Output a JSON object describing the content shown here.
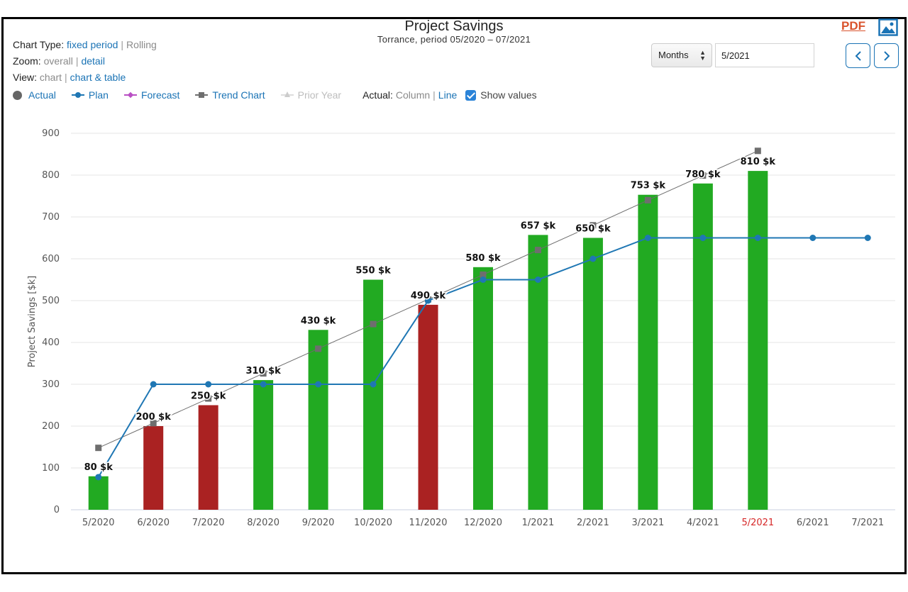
{
  "controls": {
    "chart_type": {
      "label": "Chart Type:",
      "active": "fixed period",
      "inactive": "Rolling"
    },
    "zoom": {
      "label": "Zoom:",
      "inactive": "overall",
      "active": "detail"
    },
    "view": {
      "label": "View:",
      "inactive": "chart",
      "active": "chart & table"
    },
    "separator": "|"
  },
  "legend": {
    "actual": "Actual",
    "plan": "Plan",
    "forecast": "Forecast",
    "trend": "Trend Chart",
    "prior_year": "Prior Year",
    "actual_mode_label": "Actual:",
    "mode_column": "Column",
    "mode_line": "Line",
    "show_values": "Show values"
  },
  "toolbar": {
    "period_select": "Months",
    "date_value": "5/2021",
    "pdf": "PDF"
  },
  "colors": {
    "above_plan": "#22aa22",
    "below_plan": "#aa2222",
    "plan": "#1f77b4",
    "trend": "#6e6e6e",
    "forecast": "#b94fc4",
    "link": "#1a73b5",
    "current_period": "#d62728"
  },
  "chart_data": {
    "type": "bar",
    "title": "Project Savings",
    "subtitle": "Torrance, period 05/2020 – 07/2021",
    "xlabel": "",
    "ylabel": "Project Savings [$k]",
    "ylim": [
      0,
      900
    ],
    "yticks": [
      0,
      100,
      200,
      300,
      400,
      500,
      600,
      700,
      800,
      900
    ],
    "grid": true,
    "categories": [
      "5/2020",
      "6/2020",
      "7/2020",
      "8/2020",
      "9/2020",
      "10/2020",
      "11/2020",
      "12/2020",
      "1/2021",
      "2/2021",
      "3/2021",
      "4/2021",
      "5/2021",
      "6/2021",
      "7/2021"
    ],
    "current_category": "5/2021",
    "series": [
      {
        "name": "Actual",
        "type": "column",
        "values": [
          80,
          200,
          250,
          310,
          430,
          550,
          490,
          580,
          657,
          650,
          753,
          780,
          810,
          null,
          null
        ],
        "labels": [
          "80 $k",
          "200 $k",
          "250 $k",
          "310 $k",
          "430 $k",
          "550 $k",
          "490 $k",
          "580 $k",
          "657 $k",
          "650 $k",
          "753 $k",
          "780 $k",
          "810 $k",
          "",
          ""
        ],
        "status": [
          "above",
          "below",
          "below",
          "above",
          "above",
          "above",
          "below",
          "above",
          "above",
          "above",
          "above",
          "above",
          "above",
          "",
          ""
        ]
      },
      {
        "name": "Plan",
        "type": "line",
        "values": [
          78,
          300,
          300,
          300,
          300,
          300,
          500,
          550,
          550,
          600,
          650,
          650,
          650,
          650,
          650
        ]
      },
      {
        "name": "Trend Chart",
        "type": "line",
        "values": [
          148,
          207,
          266,
          326,
          385,
          444,
          503,
          562,
          621,
          680,
          740,
          799,
          858,
          null,
          null
        ]
      }
    ]
  }
}
